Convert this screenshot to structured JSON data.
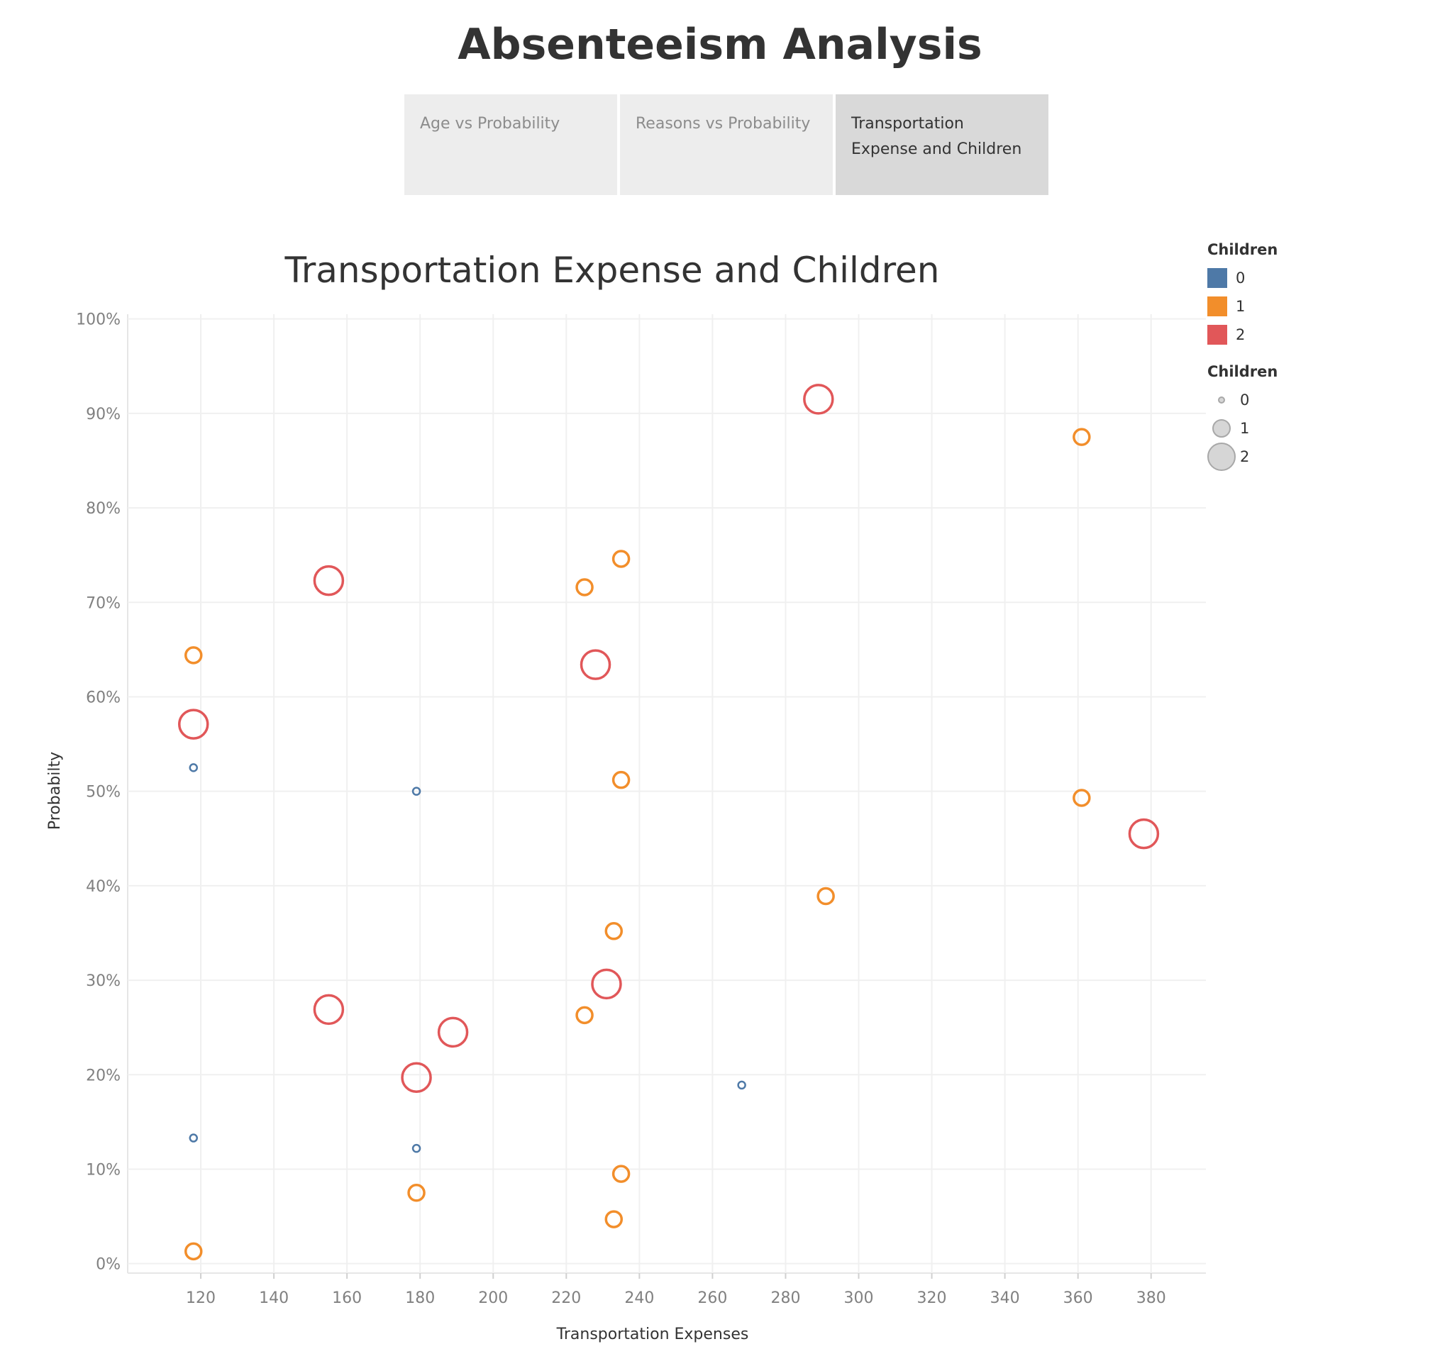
{
  "story": {
    "title": "Absenteeism Analysis",
    "tabs": [
      {
        "label": "Age vs Probability",
        "active": false
      },
      {
        "label": "Reasons vs Probability",
        "active": false
      },
      {
        "label": "Transportation Expense and Children",
        "active": true
      }
    ]
  },
  "legend": {
    "color_title": "Children",
    "color_items": [
      {
        "label": "0",
        "color": "#4e79a7"
      },
      {
        "label": "1",
        "color": "#f28e2b"
      },
      {
        "label": "2",
        "color": "#e15759"
      }
    ],
    "size_title": "Children",
    "size_items": [
      {
        "label": "0"
      },
      {
        "label": "1"
      },
      {
        "label": "2"
      }
    ]
  },
  "chart_data": {
    "type": "scatter",
    "title": "Transportation Expense and Children",
    "xlabel": "Transportation Expenses",
    "ylabel": "Probabilty",
    "xlim": [
      100,
      395
    ],
    "ylim": [
      -0.01,
      1.005
    ],
    "x_ticks": [
      "120",
      "140",
      "160",
      "180",
      "200",
      "220",
      "240",
      "260",
      "280",
      "300",
      "320",
      "340",
      "360",
      "380"
    ],
    "y_ticks": [
      "0%",
      "10%",
      "20%",
      "30%",
      "40%",
      "50%",
      "60%",
      "70%",
      "80%",
      "90%",
      "100%"
    ],
    "grid": true,
    "legend_position": "top-right",
    "colors": {
      "0": "#4e79a7",
      "1": "#f28e2b",
      "2": "#e15759"
    },
    "series": [
      {
        "name": "0",
        "points": [
          [
            118,
            0.525
          ],
          [
            179,
            0.5
          ],
          [
            268,
            0.189
          ],
          [
            118,
            0.133
          ],
          [
            179,
            0.122
          ]
        ]
      },
      {
        "name": "1",
        "points": [
          [
            361,
            0.875
          ],
          [
            235,
            0.746
          ],
          [
            225,
            0.716
          ],
          [
            118,
            0.644
          ],
          [
            235,
            0.512
          ],
          [
            361,
            0.493
          ],
          [
            291,
            0.389
          ],
          [
            233,
            0.352
          ],
          [
            225,
            0.263
          ],
          [
            235,
            0.095
          ],
          [
            179,
            0.075
          ],
          [
            233,
            0.047
          ],
          [
            118,
            0.013
          ]
        ]
      },
      {
        "name": "2",
        "points": [
          [
            289,
            0.915
          ],
          [
            155,
            0.723
          ],
          [
            228,
            0.634
          ],
          [
            118,
            0.571
          ],
          [
            378,
            0.455
          ],
          [
            231,
            0.296
          ],
          [
            155,
            0.269
          ],
          [
            189,
            0.245
          ],
          [
            179,
            0.197
          ]
        ]
      }
    ]
  }
}
